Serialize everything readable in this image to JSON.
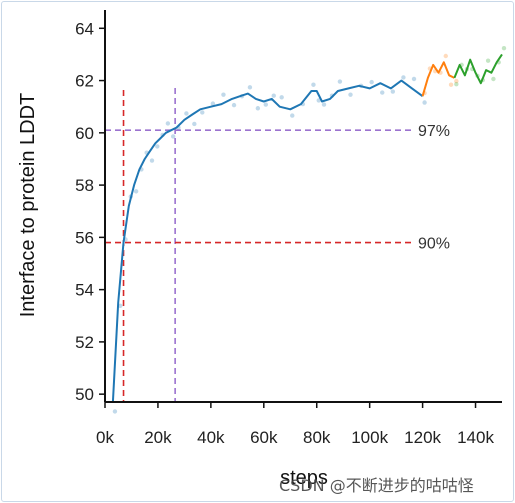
{
  "chart_data": {
    "type": "line",
    "title": "",
    "xlabel": "steps",
    "ylabel": "Interface to protein LDDT",
    "xlim": [
      0,
      150000
    ],
    "ylim": [
      49.7,
      64.7
    ],
    "x_ticks": [
      0,
      20000,
      40000,
      60000,
      80000,
      100000,
      120000,
      140000
    ],
    "x_tick_labels": [
      "0k",
      "20k",
      "40k",
      "60k",
      "80k",
      "100k",
      "120k",
      "140k"
    ],
    "y_ticks": [
      50,
      52,
      54,
      56,
      58,
      60,
      62,
      64
    ],
    "y_tick_labels": [
      "50",
      "52",
      "54",
      "56",
      "58",
      "60",
      "62",
      "64"
    ],
    "grid": false,
    "series": [
      {
        "color": "#1f77b4",
        "x": [
          3000,
          5000,
          7000,
          9000,
          11000,
          13000,
          15000,
          17000,
          19000,
          21000,
          23000,
          25000,
          27000,
          30000,
          33000,
          36000,
          40000,
          44000,
          48000,
          51000,
          54000,
          57000,
          60000,
          63000,
          66000,
          70000,
          74000,
          78000,
          80000,
          82000,
          85000,
          88000,
          92000,
          96000,
          100000,
          104000,
          108000,
          112000,
          116000,
          120000
        ],
        "y": [
          49.7,
          53.5,
          55.8,
          57.2,
          58.0,
          58.6,
          59.0,
          59.3,
          59.6,
          59.8,
          60.0,
          60.1,
          60.2,
          60.5,
          60.7,
          60.9,
          61.0,
          61.1,
          61.3,
          61.4,
          61.5,
          61.3,
          61.2,
          61.3,
          61.0,
          60.9,
          61.1,
          61.6,
          61.6,
          61.2,
          61.3,
          61.6,
          61.7,
          61.8,
          61.7,
          61.9,
          61.7,
          62.0,
          61.7,
          61.4
        ]
      },
      {
        "color": "#ff7f0e",
        "x": [
          120000,
          122000,
          124000,
          126000,
          128000,
          130000,
          132000
        ],
        "y": [
          61.4,
          62.1,
          62.6,
          62.3,
          62.7,
          62.2,
          62.1
        ]
      },
      {
        "color": "#2ca02c",
        "x": [
          132000,
          134000,
          136000,
          138000,
          140000,
          142000,
          144000,
          146000,
          148000,
          150000
        ],
        "y": [
          62.1,
          62.6,
          62.2,
          62.8,
          62.3,
          61.9,
          62.4,
          62.3,
          62.7,
          63.0
        ]
      }
    ],
    "reference_lines": [
      {
        "label": "97%",
        "y": 60.1,
        "x": 26500,
        "color": "#9b72cf"
      },
      {
        "label": "90%",
        "y": 55.8,
        "x": 7000,
        "color": "#d62728"
      }
    ]
  },
  "watermark": "CSDN @不断进步的咕咕怪"
}
